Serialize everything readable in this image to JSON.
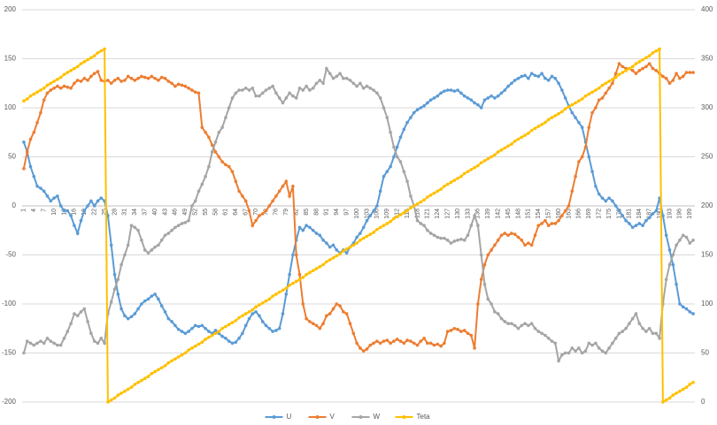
{
  "chart_data": {
    "type": "line",
    "categories": [
      1,
      null,
      null,
      4,
      null,
      null,
      7,
      null,
      null,
      10,
      null,
      null,
      13,
      null,
      null,
      16,
      null,
      null,
      19,
      null,
      null,
      22,
      null,
      null,
      25,
      null,
      null,
      28,
      null,
      null,
      31,
      null,
      null,
      34,
      null,
      null,
      37,
      null,
      null,
      40,
      null,
      null,
      43,
      null,
      null,
      46,
      null,
      null,
      49,
      null,
      null,
      52,
      null,
      null,
      55,
      null,
      null,
      58,
      null,
      null,
      61,
      null,
      null,
      64,
      null,
      null,
      67,
      null,
      null,
      70,
      null,
      null,
      73,
      null,
      null,
      76,
      null,
      null,
      79,
      null,
      null,
      82,
      null,
      null,
      85,
      null,
      null,
      88,
      null,
      null,
      91,
      null,
      null,
      94,
      null,
      null,
      97,
      null,
      null,
      100,
      null,
      null,
      103,
      null,
      null,
      106,
      null,
      null,
      109,
      null,
      null,
      112,
      null,
      null,
      115,
      null,
      null,
      118,
      null,
      null,
      121,
      null,
      null,
      124,
      null,
      null,
      127,
      null,
      null,
      130,
      null,
      null,
      133,
      null,
      null,
      136,
      null,
      null,
      139,
      null,
      null,
      142,
      null,
      null,
      145,
      null,
      null,
      148,
      null,
      null,
      151,
      null,
      null,
      154,
      null,
      null,
      157,
      null,
      null,
      160,
      null,
      null,
      163,
      null,
      null,
      166,
      null,
      null,
      169,
      null,
      null,
      172,
      null,
      null,
      175,
      null,
      null,
      178,
      null,
      null,
      181,
      null,
      null,
      184,
      null,
      null,
      187,
      null,
      null,
      190,
      null,
      null,
      193,
      null,
      null,
      196,
      null,
      null,
      199,
      null
    ],
    "series": [
      {
        "name": "U",
        "color": "#5b9bd5",
        "values": [
          65,
          55,
          40,
          30,
          20,
          18,
          15,
          10,
          5,
          8,
          10,
          0,
          -5,
          -5,
          -10,
          -20,
          -28,
          -15,
          -5,
          0,
          5,
          0,
          5,
          8,
          5,
          -10,
          -40,
          -70,
          -90,
          -105,
          -112,
          -115,
          -113,
          -110,
          -105,
          -100,
          -97,
          -95,
          -92,
          -90,
          -95,
          -102,
          -108,
          -115,
          -118,
          -122,
          -126,
          -128,
          -130,
          -128,
          -125,
          -122,
          -123,
          -122,
          -125,
          -128,
          -130,
          -127,
          -130,
          -133,
          -135,
          -138,
          -140,
          -139,
          -135,
          -130,
          -122,
          -115,
          -110,
          -108,
          -112,
          -118,
          -122,
          -125,
          -128,
          -127,
          -125,
          -110,
          -90,
          -70,
          -50,
          -35,
          -22,
          -25,
          -20,
          -22,
          -25,
          -28,
          -30,
          -35,
          -38,
          -42,
          -40,
          -45,
          -48,
          -45,
          -48,
          -42,
          -38,
          -32,
          -28,
          -22,
          -15,
          -10,
          -5,
          0,
          15,
          30,
          35,
          40,
          50,
          60,
          70,
          78,
          85,
          90,
          95,
          98,
          100,
          102,
          105,
          108,
          110,
          112,
          115,
          117,
          118,
          118,
          117,
          118,
          115,
          112,
          110,
          108,
          105,
          103,
          100,
          108,
          110,
          112,
          110,
          112,
          115,
          118,
          122,
          125,
          128,
          130,
          132,
          133,
          130,
          135,
          133,
          132,
          135,
          130,
          128,
          132,
          130,
          125,
          118,
          110,
          102,
          95,
          90,
          85,
          80,
          65,
          50,
          35,
          20,
          12,
          8,
          5,
          8,
          5,
          0,
          -5,
          -10,
          -15,
          -18,
          -22,
          -20,
          -18,
          -20,
          -15,
          -12,
          -8,
          -5,
          8,
          -10,
          -30,
          -45,
          -60,
          -80,
          -100,
          -103,
          -105,
          -108,
          -110
        ]
      },
      {
        "name": "V",
        "color": "#ed7d31",
        "values": [
          38,
          55,
          68,
          75,
          85,
          95,
          108,
          115,
          118,
          120,
          122,
          120,
          122,
          121,
          120,
          125,
          128,
          127,
          130,
          128,
          132,
          135,
          137,
          128,
          127,
          128,
          125,
          128,
          130,
          127,
          128,
          132,
          130,
          128,
          130,
          132,
          131,
          130,
          132,
          130,
          128,
          131,
          130,
          127,
          125,
          122,
          124,
          123,
          122,
          120,
          118,
          116,
          115,
          80,
          75,
          70,
          62,
          55,
          50,
          45,
          42,
          40,
          35,
          25,
          15,
          10,
          5,
          -5,
          -20,
          -15,
          -10,
          -8,
          -5,
          0,
          5,
          10,
          15,
          20,
          25,
          10,
          20,
          -50,
          -70,
          -100,
          -115,
          -118,
          -120,
          -122,
          -125,
          -120,
          -112,
          -110,
          -105,
          -100,
          -102,
          -108,
          -110,
          -120,
          -130,
          -140,
          -145,
          -148,
          -146,
          -142,
          -140,
          -138,
          -140,
          -138,
          -137,
          -140,
          -138,
          -136,
          -138,
          -140,
          -137,
          -138,
          -140,
          -142,
          -138,
          -135,
          -140,
          -140,
          -142,
          -141,
          -143,
          -140,
          -128,
          -127,
          -125,
          -126,
          -128,
          -127,
          -130,
          -132,
          -145,
          -100,
          -75,
          -60,
          -50,
          -45,
          -40,
          -35,
          -30,
          -28,
          -30,
          -28,
          -29,
          -32,
          -35,
          -40,
          -38,
          -40,
          -30,
          -20,
          -18,
          -15,
          -20,
          -18,
          -18,
          -15,
          -10,
          -5,
          0,
          15,
          30,
          45,
          50,
          60,
          80,
          95,
          100,
          108,
          110,
          115,
          120,
          125,
          135,
          145,
          142,
          140,
          140,
          138,
          135,
          138,
          140,
          142,
          145,
          140,
          138,
          135,
          132,
          130,
          125,
          128,
          135,
          130,
          132,
          136,
          136,
          136
        ]
      },
      {
        "name": "W",
        "color": "#a5a5a5",
        "values": [
          -150,
          -138,
          -140,
          -142,
          -140,
          -138,
          -140,
          -135,
          -138,
          -140,
          -142,
          -142,
          -135,
          -128,
          -120,
          -110,
          -112,
          -108,
          -105,
          -118,
          -130,
          -138,
          -140,
          -135,
          -140,
          -110,
          -98,
          -85,
          -75,
          -60,
          -50,
          -40,
          -20,
          -22,
          -25,
          -35,
          -45,
          -48,
          -45,
          -42,
          -40,
          -35,
          -30,
          -28,
          -25,
          -22,
          -20,
          -18,
          -17,
          -15,
          0,
          5,
          15,
          22,
          30,
          40,
          55,
          65,
          75,
          80,
          90,
          100,
          110,
          115,
          118,
          118,
          120,
          118,
          120,
          112,
          112,
          115,
          118,
          120,
          122,
          115,
          110,
          105,
          110,
          115,
          112,
          110,
          120,
          118,
          122,
          118,
          120,
          125,
          128,
          125,
          140,
          135,
          130,
          132,
          135,
          130,
          130,
          128,
          125,
          122,
          125,
          120,
          122,
          120,
          118,
          115,
          110,
          100,
          90,
          75,
          60,
          50,
          45,
          35,
          25,
          10,
          0,
          -15,
          -18,
          -20,
          -25,
          -28,
          -30,
          -32,
          -33,
          -33,
          -35,
          -38,
          -36,
          -35,
          -34,
          -35,
          -30,
          -20,
          -10,
          -20,
          -50,
          -80,
          -95,
          -100,
          -108,
          -110,
          -115,
          -118,
          -120,
          -120,
          -122,
          -125,
          -122,
          -120,
          -122,
          -120,
          -125,
          -128,
          -130,
          -132,
          -135,
          -138,
          -140,
          -158,
          -152,
          -150,
          -150,
          -145,
          -148,
          -145,
          -150,
          -148,
          -140,
          -142,
          -140,
          -145,
          -148,
          -150,
          -145,
          -140,
          -135,
          -130,
          -128,
          -125,
          -120,
          -115,
          -110,
          -120,
          -125,
          -128,
          -125,
          -130,
          -130,
          -135,
          -100,
          -75,
          -60,
          -50,
          -40,
          -35,
          -30,
          -32,
          -38,
          -35
        ]
      },
      {
        "name": "Teta",
        "color": "#ffc000",
        "axis": "y2",
        "values": [
          307,
          309,
          312,
          314,
          316,
          318,
          320,
          323,
          325,
          327,
          329,
          331,
          334,
          336,
          338,
          340,
          342,
          345,
          347,
          349,
          351,
          353,
          356,
          358,
          360,
          0,
          2,
          4,
          7,
          9,
          11,
          13,
          15,
          18,
          20,
          22,
          24,
          26,
          29,
          31,
          33,
          35,
          37,
          40,
          42,
          44,
          46,
          48,
          50,
          53,
          55,
          57,
          59,
          61,
          64,
          66,
          68,
          70,
          72,
          75,
          77,
          79,
          81,
          83,
          86,
          88,
          90,
          92,
          94,
          97,
          99,
          101,
          103,
          105,
          108,
          110,
          112,
          114,
          116,
          119,
          121,
          123,
          125,
          127,
          130,
          132,
          134,
          136,
          138,
          140,
          143,
          145,
          147,
          149,
          151,
          154,
          156,
          158,
          160,
          162,
          165,
          167,
          169,
          171,
          173,
          176,
          178,
          180,
          182,
          184,
          187,
          189,
          191,
          193,
          195,
          198,
          200,
          202,
          204,
          206,
          209,
          211,
          213,
          215,
          217,
          220,
          222,
          224,
          226,
          228,
          230,
          233,
          235,
          237,
          239,
          241,
          244,
          246,
          248,
          250,
          252,
          255,
          257,
          259,
          261,
          263,
          266,
          268,
          270,
          272,
          274,
          277,
          279,
          281,
          283,
          285,
          288,
          290,
          292,
          294,
          296,
          299,
          301,
          303,
          305,
          307,
          309,
          312,
          314,
          316,
          318,
          320,
          323,
          325,
          327,
          329,
          331,
          334,
          336,
          338,
          340,
          342,
          345,
          347,
          349,
          351,
          353,
          356,
          358,
          360,
          0,
          2,
          4,
          7,
          9,
          11,
          13,
          15,
          18,
          20
        ]
      }
    ],
    "ylim": [
      -200,
      200
    ],
    "yticks": [
      -200,
      -150,
      -100,
      -50,
      0,
      50,
      100,
      150,
      200
    ],
    "y2lim": [
      0,
      400
    ],
    "y2ticks": [
      0,
      50,
      100,
      150,
      200,
      250,
      300,
      350,
      400
    ],
    "grid": true,
    "legend": "bottom"
  }
}
